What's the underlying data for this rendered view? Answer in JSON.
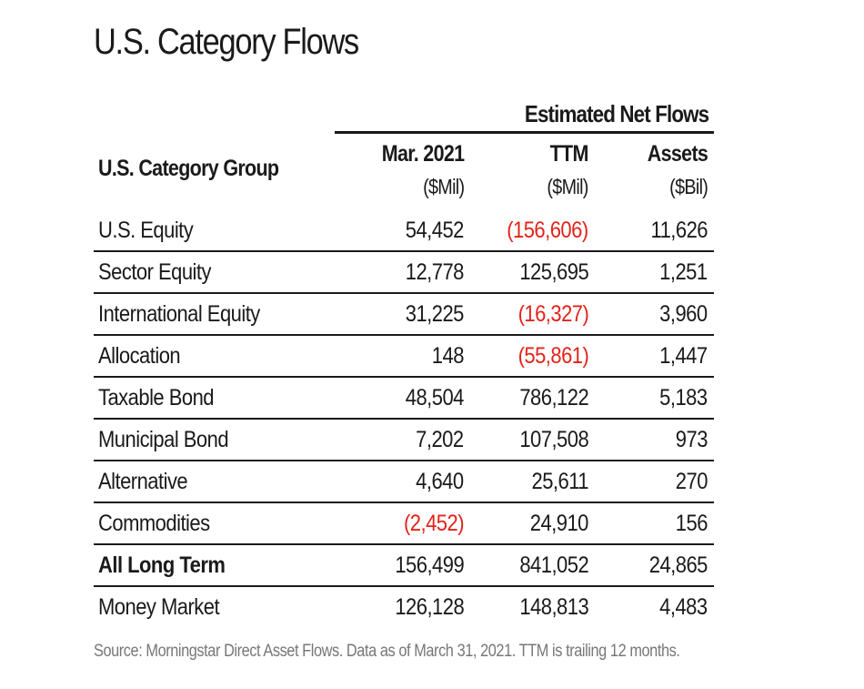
{
  "title": "U.S. Category Flows",
  "group_header": "Estimated Net Flows",
  "columns": {
    "category": "U.S. Category Group",
    "mar": {
      "label": "Mar. 2021",
      "unit": "($Mil)"
    },
    "ttm": {
      "label": "TTM",
      "unit": "($Mil)"
    },
    "assets": {
      "label": "Assets",
      "unit": "($Bil)"
    }
  },
  "colors": {
    "negative": "#e2231a",
    "text": "#1a1a1a",
    "source": "#777777"
  },
  "chart_data": {
    "type": "table",
    "title": "U.S. Category Flows",
    "headers": [
      "U.S. Category Group",
      "Mar. 2021 ($Mil)",
      "TTM ($Mil)",
      "Assets ($Bil)"
    ],
    "rows": [
      {
        "category": "U.S. Equity",
        "mar": "54,452",
        "ttm": "(156,606)",
        "assets": "11,626"
      },
      {
        "category": "Sector Equity",
        "mar": "12,778",
        "ttm": "125,695",
        "assets": "1,251"
      },
      {
        "category": "International Equity",
        "mar": "31,225",
        "ttm": "(16,327)",
        "assets": "3,960"
      },
      {
        "category": "Allocation",
        "mar": "148",
        "ttm": "(55,861)",
        "assets": "1,447"
      },
      {
        "category": "Taxable Bond",
        "mar": "48,504",
        "ttm": "786,122",
        "assets": "5,183"
      },
      {
        "category": "Municipal Bond",
        "mar": "7,202",
        "ttm": "107,508",
        "assets": "973"
      },
      {
        "category": "Alternative",
        "mar": "4,640",
        "ttm": "25,611",
        "assets": "270"
      },
      {
        "category": "Commodities",
        "mar": "(2,452)",
        "ttm": "24,910",
        "assets": "156"
      },
      {
        "category": "All Long Term",
        "mar": "156,499",
        "ttm": "841,052",
        "assets": "24,865",
        "bold": true
      },
      {
        "category": "Money Market",
        "mar": "126,128",
        "ttm": "148,813",
        "assets": "4,483"
      }
    ]
  },
  "source": "Source: Morningstar Direct Asset Flows. Data as of March 31, 2021. TTM is trailing 12 months."
}
